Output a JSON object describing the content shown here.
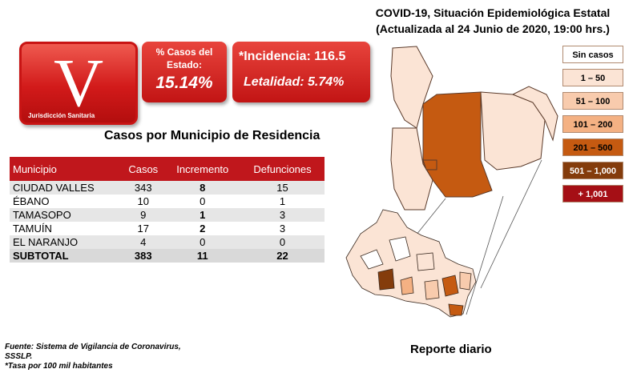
{
  "badge": {
    "letter": "V",
    "subtitle": "Jurisdicción Sanitaria"
  },
  "state_percentage": {
    "label_line1": "% Casos del",
    "label_line2": "Estado:",
    "value": "15.14%"
  },
  "rates": {
    "incidence": "*Incidencia: 116.5",
    "lethality": "Letalidad: 5.74%"
  },
  "table": {
    "title": "Casos por Municipio  de Residencia",
    "headers": [
      "Municipio",
      "Casos",
      "Incremento",
      "Defunciones"
    ],
    "rows": [
      {
        "municipio": "CIUDAD VALLES",
        "casos": "343",
        "incremento": "8",
        "defunciones": "15"
      },
      {
        "municipio": "ÉBANO",
        "casos": "10",
        "incremento": "0",
        "defunciones": "1"
      },
      {
        "municipio": "TAMASOPO",
        "casos": "9",
        "incremento": "1",
        "defunciones": "3"
      },
      {
        "municipio": "TAMUÍN",
        "casos": "17",
        "incremento": "2",
        "defunciones": "3"
      },
      {
        "municipio": "EL NARANJO",
        "casos": "4",
        "incremento": "0",
        "defunciones": "0"
      }
    ],
    "subtotal": {
      "municipio": "SUBTOTAL",
      "casos": "383",
      "incremento": "11",
      "defunciones": "22"
    }
  },
  "map": {
    "title_line1": "COVID-19, Situación Epidemiológica Estatal",
    "title_line2": "(Actualizada al 24 Junio de 2020, 19:00 hrs.)",
    "legend": [
      {
        "label": "Sin casos",
        "color": "#ffffff",
        "text_color": "#000000"
      },
      {
        "label": "1 – 50",
        "color": "#fbe4d5",
        "text_color": "#000000"
      },
      {
        "label": "51 – 100",
        "color": "#f8cbad",
        "text_color": "#000000"
      },
      {
        "label": "101 – 200",
        "color": "#f4b183",
        "text_color": "#000000"
      },
      {
        "label": "201 – 500",
        "color": "#c55a11",
        "text_color": "#000000"
      },
      {
        "label": "501 – 1,000",
        "color": "#843c0c",
        "text_color": "#ffffff"
      },
      {
        "label": "+ 1,001",
        "color": "#a50f15",
        "text_color": "#ffffff"
      }
    ]
  },
  "footer": {
    "line1": "Fuente:  Sistema de Vigilancia  de Coronavirus,",
    "line2": "SSSLP.",
    "line3": "*Tasa por 100 mil habitantes"
  },
  "report_label": "Reporte diario"
}
